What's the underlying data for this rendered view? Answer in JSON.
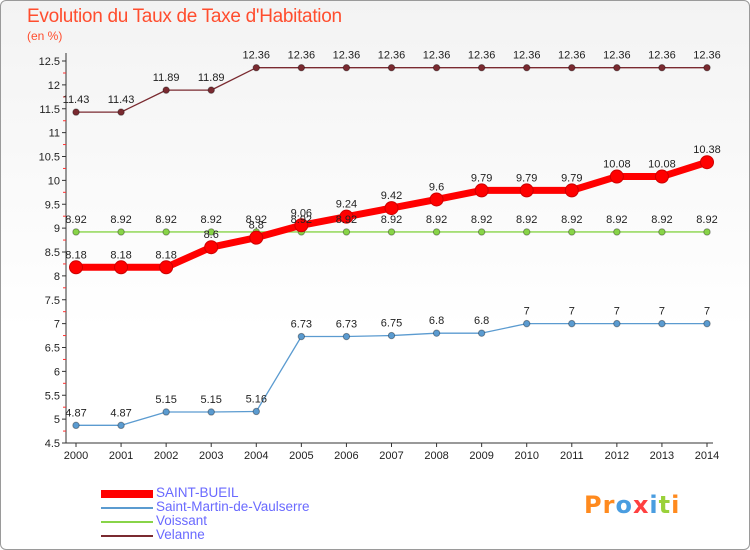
{
  "chart_data": {
    "type": "line",
    "title": "Evolution du Taux de Taxe d'Habitation",
    "ylabel": "(en %)",
    "xlabel": "",
    "x": [
      "2000",
      "2001",
      "2002",
      "2003",
      "2004",
      "2005",
      "2006",
      "2007",
      "2008",
      "2009",
      "2010",
      "2011",
      "2012",
      "2013",
      "2014"
    ],
    "ylim": [
      4.5,
      12.5
    ],
    "yticks": [
      4.5,
      5,
      5.5,
      6,
      6.5,
      7,
      7.5,
      8,
      8.5,
      9,
      9.5,
      10,
      10.5,
      11,
      11.5,
      12,
      12.5
    ],
    "grid": false,
    "legend_position": "bottom-left",
    "series": [
      {
        "name": "SAINT-BUEIL",
        "color": "#ff0000",
        "values": [
          8.18,
          8.18,
          8.18,
          8.6,
          8.8,
          9.06,
          9.24,
          9.42,
          9.6,
          9.79,
          9.79,
          9.79,
          10.08,
          10.08,
          10.38
        ],
        "labels": [
          "8.18",
          "8.18",
          "8.18",
          "8.6",
          "8.8",
          "9.06",
          "9.24",
          "9.42",
          "9.6",
          "9.79",
          "9.79",
          "9.79",
          "10.08",
          "10.08",
          "10.38"
        ]
      },
      {
        "name": "Saint-Martin-de-Vaulserre",
        "color": "#5b9bd0",
        "values": [
          4.87,
          4.87,
          5.15,
          5.15,
          5.16,
          6.73,
          6.73,
          6.75,
          6.8,
          6.8,
          7,
          7,
          7,
          7,
          7
        ],
        "labels": [
          "4.87",
          "4.87",
          "5.15",
          "5.15",
          "5.16",
          "6.73",
          "6.73",
          "6.75",
          "6.8",
          "6.8",
          "7",
          "7",
          "7",
          "7",
          "7"
        ]
      },
      {
        "name": "Voissant",
        "color": "#88d448",
        "values": [
          8.92,
          8.92,
          8.92,
          8.92,
          8.92,
          8.92,
          8.92,
          8.92,
          8.92,
          8.92,
          8.92,
          8.92,
          8.92,
          8.92,
          8.92
        ],
        "labels": [
          "8.92",
          "8.92",
          "8.92",
          "8.92",
          "8.92",
          "8.92",
          "8.92",
          "8.92",
          "8.92",
          "8.92",
          "8.92",
          "8.92",
          "8.92",
          "8.92",
          "8.92"
        ]
      },
      {
        "name": "Velanne",
        "color": "#7a2a30",
        "values": [
          11.43,
          11.43,
          11.89,
          11.89,
          12.36,
          12.36,
          12.36,
          12.36,
          12.36,
          12.36,
          12.36,
          12.36,
          12.36,
          12.36,
          12.36
        ],
        "labels": [
          "11.43",
          "11.43",
          "11.89",
          "11.89",
          "12.36",
          "12.36",
          "12.36",
          "12.36",
          "12.36",
          "12.36",
          "12.36",
          "12.36",
          "12.36",
          "12.36",
          "12.36"
        ]
      }
    ]
  },
  "brand": {
    "logo_letters": [
      "P",
      "r",
      "o",
      "x",
      "i",
      "t",
      "i"
    ],
    "logo_colors": [
      "#ff8a1e",
      "#ff8a1e",
      "#4a9de0",
      "#ff4040",
      "#4a9de0",
      "#9ad13a",
      "#ff8a1e"
    ]
  }
}
